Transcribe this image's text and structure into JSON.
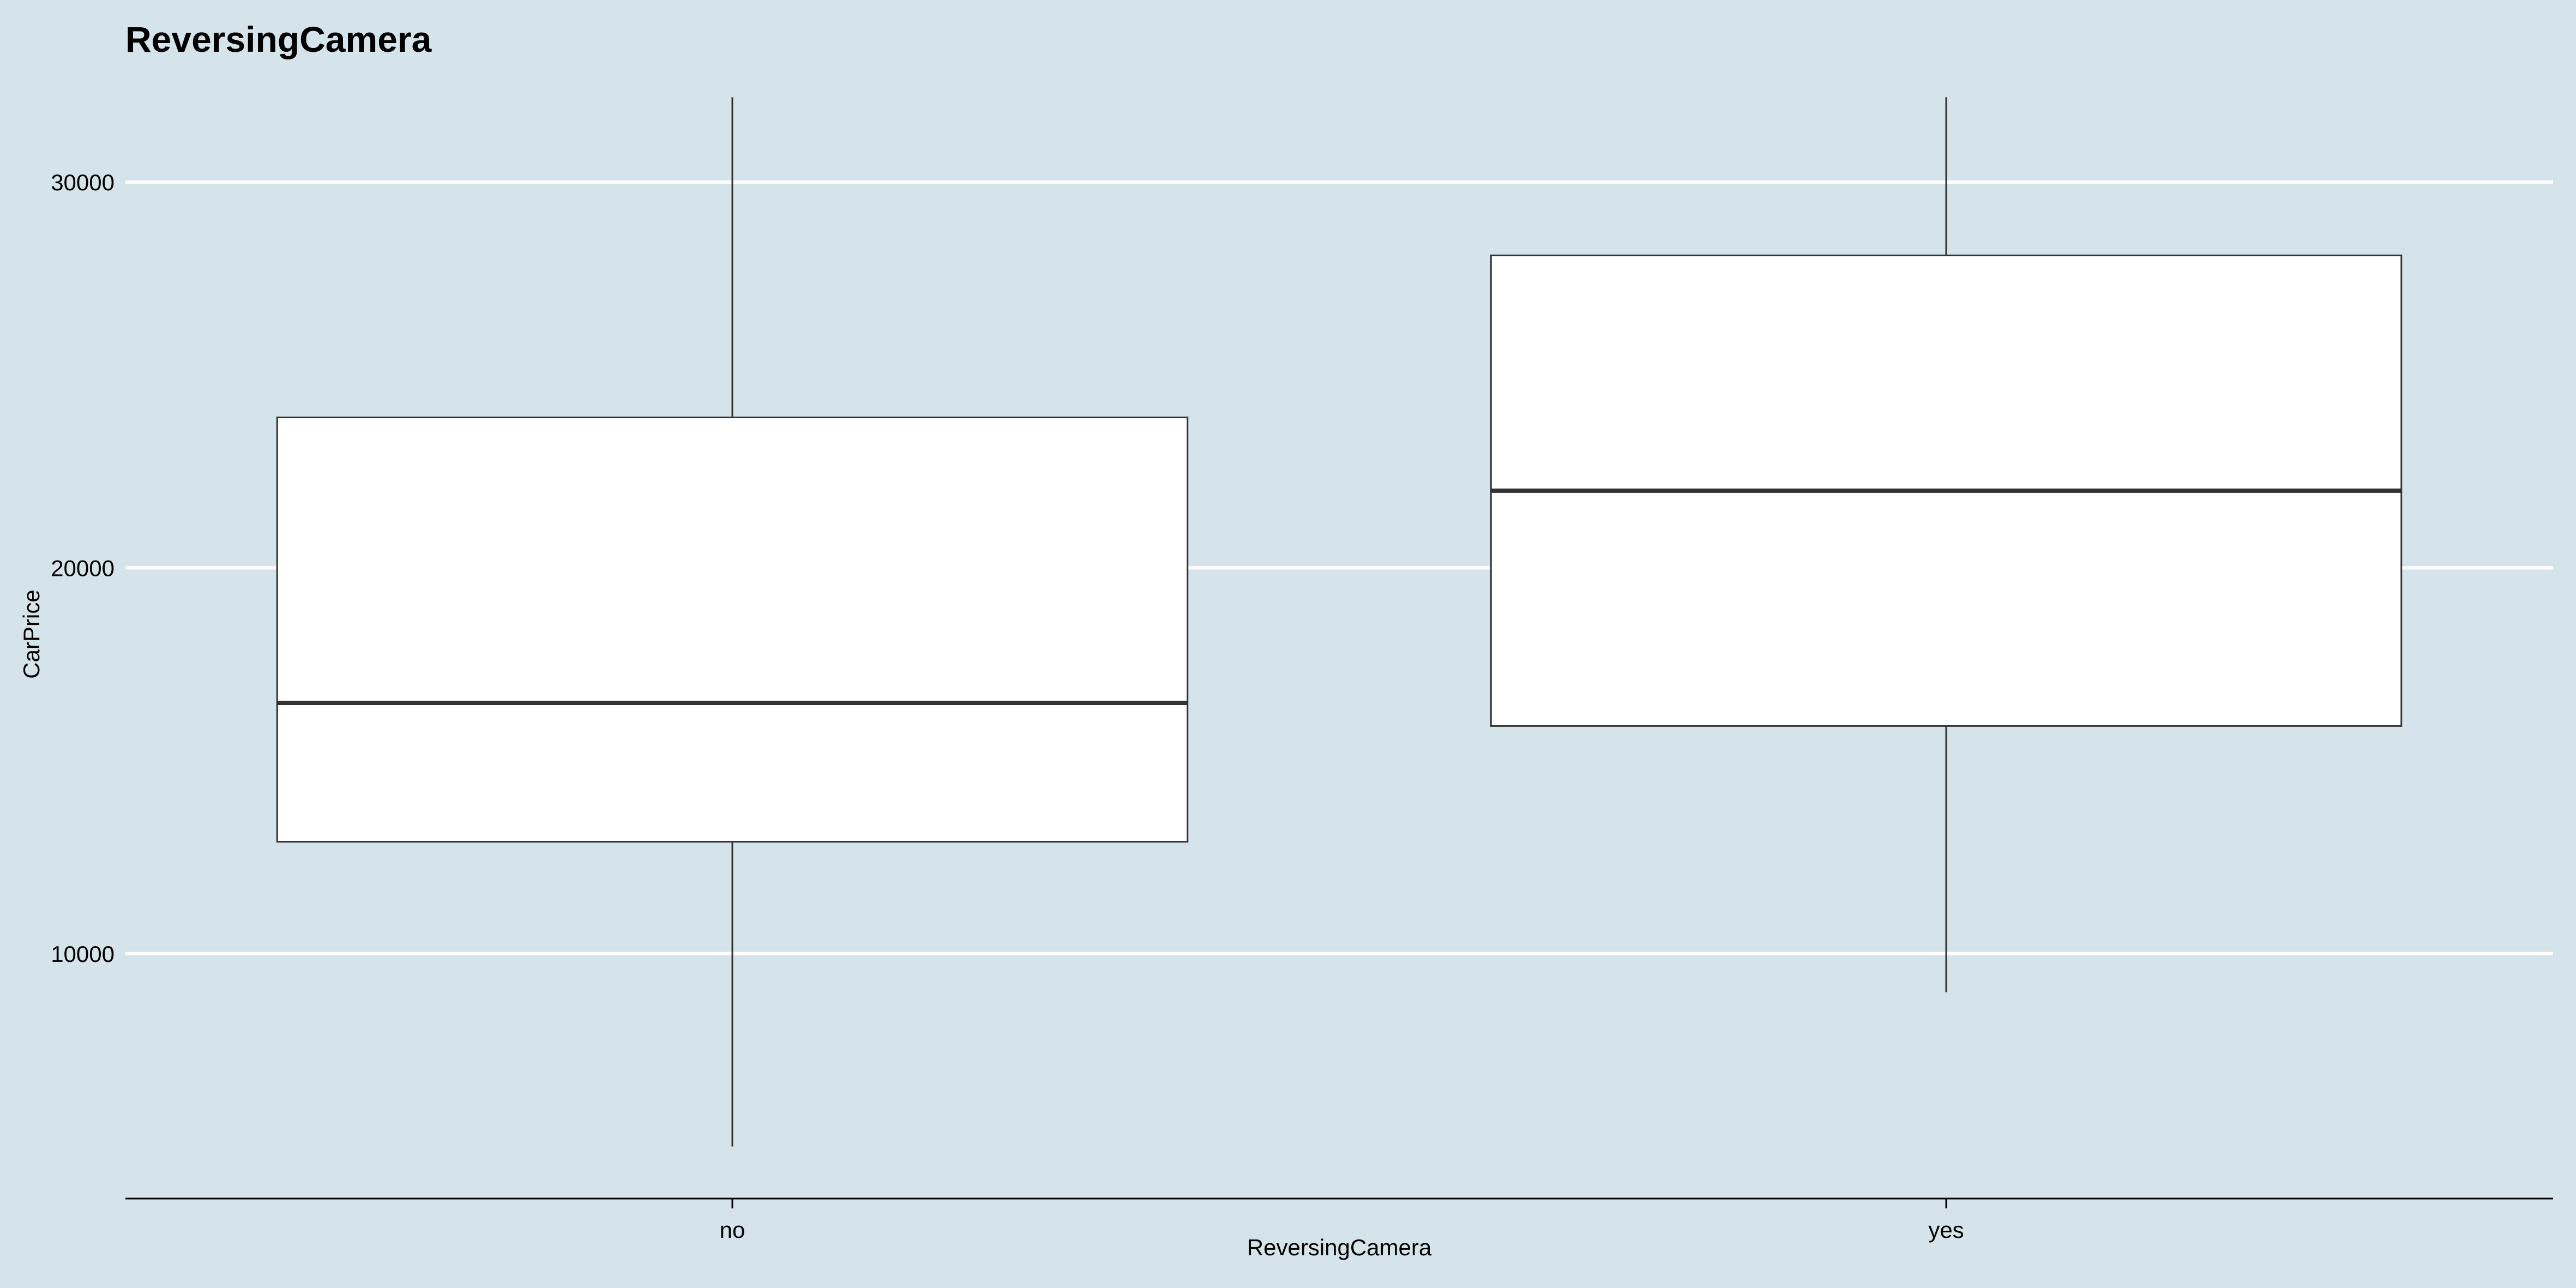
{
  "chart_data": {
    "type": "boxplot",
    "title": "ReversingCamera",
    "xlabel": "ReversingCamera",
    "ylabel": "CarPrice",
    "categories": [
      "no",
      "yes"
    ],
    "boxes": [
      {
        "category": "no",
        "whisker_low": 5000,
        "q1": 12900,
        "median": 16500,
        "q3": 23900,
        "whisker_high": 32200
      },
      {
        "category": "yes",
        "whisker_low": 9000,
        "q1": 15900,
        "median": 22000,
        "q3": 28100,
        "whisker_high": 32200
      }
    ],
    "y_ticks": [
      10000,
      20000,
      30000
    ],
    "y_tick_labels": [
      "10000",
      "20000",
      "30000"
    ],
    "ylim": [
      3650,
      32600
    ],
    "grid": {
      "horizontal_major": true,
      "vertical": false
    },
    "colors": {
      "background": "#d5e4eb",
      "gridline": "#ffffff",
      "box_fill": "#ffffff",
      "box_stroke": "#333333"
    }
  }
}
